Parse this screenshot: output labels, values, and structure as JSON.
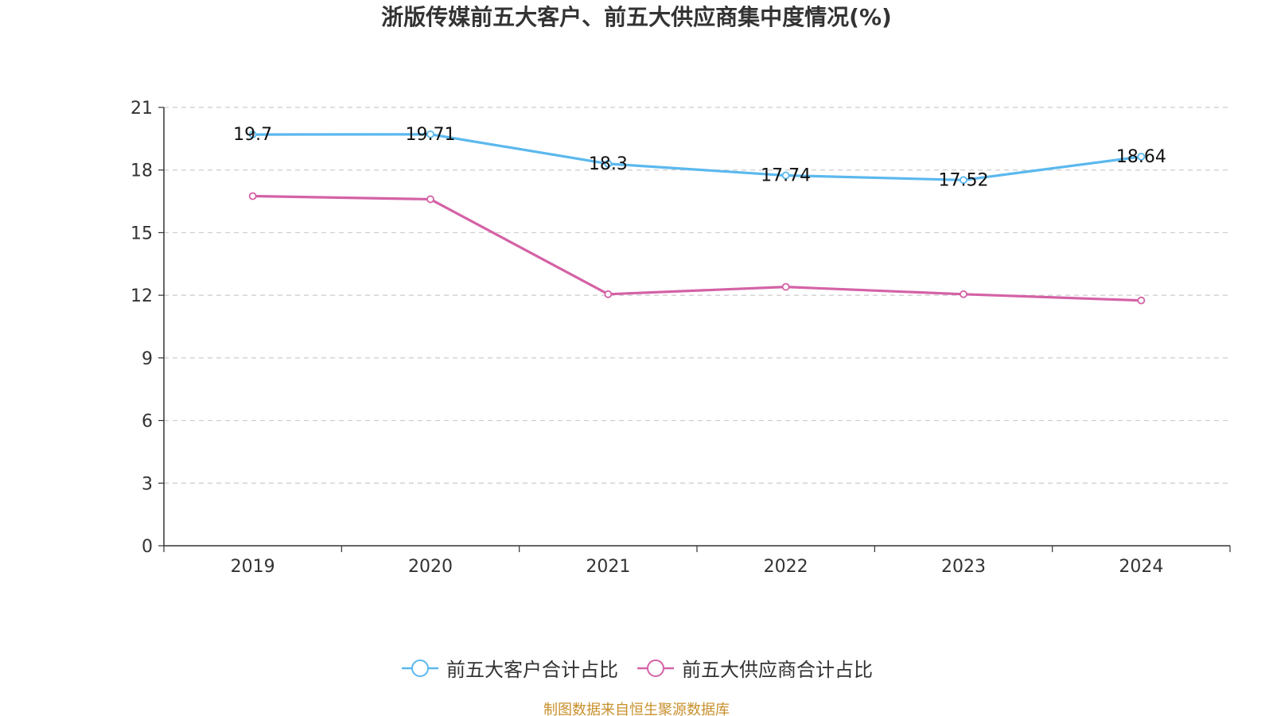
{
  "title": "浙版传媒前五大客户、前五大供应商集中度情况(%)",
  "source_note": "制图数据来自恒生聚源数据库",
  "chart_data": {
    "type": "line",
    "title": "浙版传媒前五大客户、前五大供应商集中度情况(%)",
    "categories": [
      "2019",
      "2020",
      "2021",
      "2022",
      "2023",
      "2024"
    ],
    "ylim": [
      0,
      21
    ],
    "yticks": [
      "0",
      "3",
      "6",
      "9",
      "12",
      "15",
      "18",
      "21"
    ],
    "grid": true,
    "legend_position": "bottom",
    "series": [
      {
        "name": "前五大客户合计占比",
        "color": "#5bb8ee",
        "values": [
          19.7,
          19.71,
          18.3,
          17.74,
          17.52,
          18.64
        ],
        "labels": [
          "19.7",
          "19.71",
          "18.3",
          "17.74",
          "17.52",
          "18.64"
        ]
      },
      {
        "name": "前五大供应商合计占比",
        "color": "#d462a6",
        "values": [
          16.75,
          16.6,
          12.05,
          12.4,
          12.05,
          11.75
        ]
      }
    ]
  }
}
